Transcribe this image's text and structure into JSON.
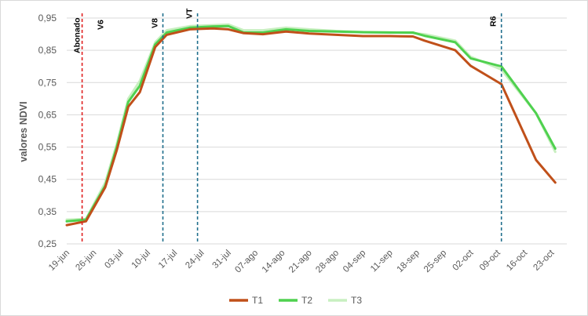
{
  "chart_data": {
    "type": "line",
    "ylabel": "valores NDVI",
    "xlabel": "",
    "title": "",
    "ylim": [
      0.25,
      0.95
    ],
    "y_ticks": [
      "0,25",
      "0,35",
      "0,45",
      "0,55",
      "0,65",
      "0,75",
      "0,85",
      "0,95"
    ],
    "x_ticks": [
      "19-jun",
      "26-jun",
      "03-jul",
      "10-jul",
      "17-jul",
      "24-jul",
      "31-jul",
      "07-ago",
      "14-ago",
      "21-ago",
      "28-ago",
      "04-sep",
      "11-sep",
      "18-sep",
      "25-sep",
      "02-oct",
      "09-oct",
      "16-oct",
      "23-oct"
    ],
    "x_tick_days": [
      0,
      7,
      14,
      21,
      28,
      35,
      42,
      49,
      56,
      63,
      70,
      77,
      84,
      91,
      98,
      105,
      112,
      119,
      126
    ],
    "x_range_days": [
      0,
      130
    ],
    "grid": "horizontal",
    "legend_position": "bottom",
    "events": [
      {
        "label": "Abonado",
        "day": 4,
        "color": "#e02020",
        "style": "dashed"
      },
      {
        "label": "V6",
        "day": 4,
        "color": "#000000",
        "style": "none"
      },
      {
        "label": "V8",
        "day": 25,
        "color": "#1f6e8c",
        "style": "dashed"
      },
      {
        "label": "VT",
        "day": 34,
        "color": "#1f6e8c",
        "style": "dashed"
      },
      {
        "label": "R6",
        "day": 113,
        "color": "#1f6e8c",
        "style": "dashed"
      }
    ],
    "series": [
      {
        "name": "T3",
        "color": "#c8efc0",
        "width": 3,
        "x": [
          0,
          5,
          10,
          13,
          16,
          19,
          23,
          26,
          32,
          38,
          42,
          46,
          51,
          57,
          63,
          70,
          77,
          84,
          90,
          93,
          101,
          105,
          113,
          122,
          127
        ],
        "y": [
          0.325,
          0.327,
          0.44,
          0.56,
          0.7,
          0.755,
          0.875,
          0.912,
          0.925,
          0.928,
          0.93,
          0.912,
          0.912,
          0.92,
          0.915,
          0.91,
          0.907,
          0.906,
          0.903,
          0.9,
          0.88,
          0.83,
          0.79,
          0.655,
          0.535
        ]
      },
      {
        "name": "T2",
        "color": "#4fd14f",
        "width": 3,
        "x": [
          0,
          5,
          10,
          13,
          16,
          19,
          23,
          26,
          32,
          38,
          42,
          46,
          51,
          57,
          63,
          70,
          77,
          84,
          90,
          93,
          101,
          105,
          113,
          122,
          127
        ],
        "y": [
          0.32,
          0.325,
          0.43,
          0.55,
          0.69,
          0.74,
          0.868,
          0.905,
          0.92,
          0.924,
          0.925,
          0.905,
          0.905,
          0.915,
          0.91,
          0.908,
          0.906,
          0.905,
          0.905,
          0.895,
          0.875,
          0.825,
          0.8,
          0.655,
          0.545
        ]
      },
      {
        "name": "T1",
        "color": "#c0501a",
        "width": 3,
        "x": [
          0,
          5,
          10,
          13,
          16,
          19,
          23,
          26,
          32,
          38,
          42,
          46,
          51,
          57,
          63,
          70,
          77,
          84,
          90,
          93,
          101,
          105,
          113,
          122,
          127
        ],
        "y": [
          0.308,
          0.32,
          0.425,
          0.54,
          0.675,
          0.72,
          0.86,
          0.898,
          0.915,
          0.918,
          0.915,
          0.903,
          0.9,
          0.908,
          0.902,
          0.898,
          0.894,
          0.894,
          0.893,
          0.88,
          0.85,
          0.802,
          0.745,
          0.51,
          0.44
        ]
      }
    ],
    "legend": [
      "T1",
      "T2",
      "T3"
    ]
  }
}
